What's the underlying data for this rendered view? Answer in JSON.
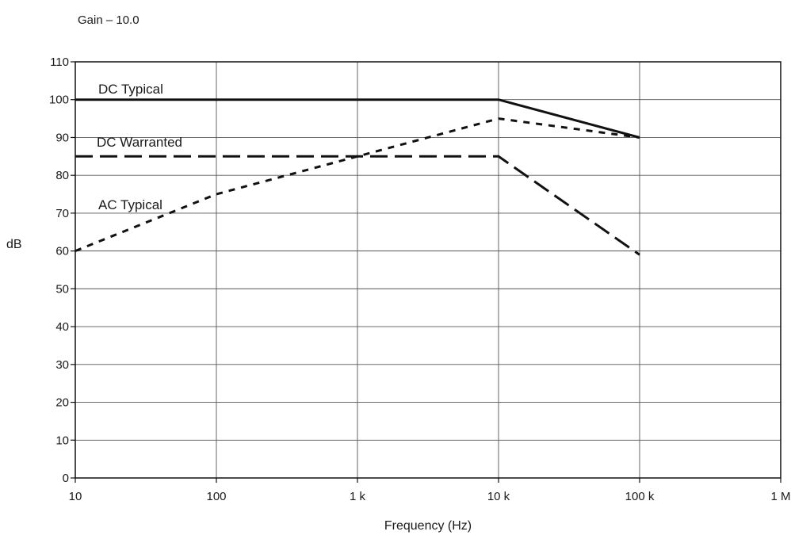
{
  "chart_data": {
    "type": "line",
    "title": "Gain – 10.0",
    "xlabel": "Frequency (Hz)",
    "ylabel": "dB",
    "x_scale": "log",
    "xlim": [
      10,
      1000000
    ],
    "ylim": [
      0,
      110
    ],
    "grid": true,
    "x_ticks": [
      {
        "value": 10,
        "label": "10"
      },
      {
        "value": 100,
        "label": "100"
      },
      {
        "value": 1000,
        "label": "1 k"
      },
      {
        "value": 10000,
        "label": "10 k"
      },
      {
        "value": 100000,
        "label": "100 k"
      },
      {
        "value": 1000000,
        "label": "1 M"
      }
    ],
    "y_ticks": [
      0,
      10,
      20,
      30,
      40,
      50,
      60,
      70,
      80,
      90,
      100,
      110
    ],
    "series": [
      {
        "name": "DC Typical",
        "style": "solid",
        "points": [
          {
            "x": 10,
            "y": 100
          },
          {
            "x": 10000,
            "y": 100
          },
          {
            "x": 100000,
            "y": 90
          }
        ]
      },
      {
        "name": "DC Warranted",
        "style": "long-dash",
        "points": [
          {
            "x": 10,
            "y": 85
          },
          {
            "x": 10000,
            "y": 85
          },
          {
            "x": 100000,
            "y": 59
          }
        ]
      },
      {
        "name": "AC Typical",
        "style": "short-dash",
        "points": [
          {
            "x": 10,
            "y": 60
          },
          {
            "x": 100,
            "y": 75
          },
          {
            "x": 1000,
            "y": 85
          },
          {
            "x": 10000,
            "y": 95
          },
          {
            "x": 100000,
            "y": 90
          }
        ]
      }
    ],
    "colors": {
      "line": "#111111",
      "grid": "#555555",
      "text": "#1a1a1a"
    }
  }
}
